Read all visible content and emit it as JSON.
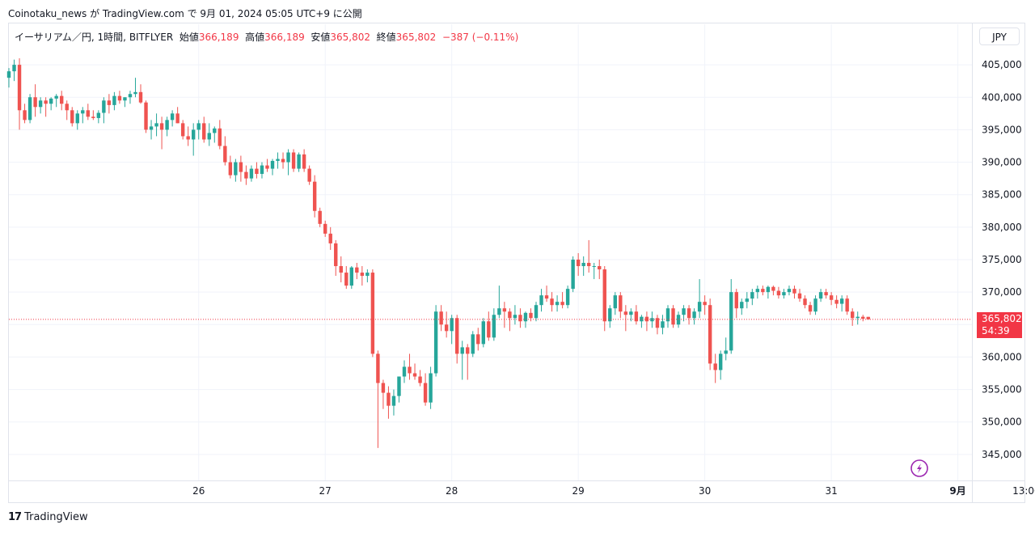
{
  "caption": "Coinotaku_news が TradingView.com で 9月 01, 2024 05:05 UTC+9 に公開",
  "legend": {
    "symbol": "イーサリアム／円, 1時間, BITFLYER",
    "open_label": "始値",
    "open": "366,189",
    "high_label": "高値",
    "high": "366,189",
    "low_label": "安値",
    "low": "365,802",
    "close_label": "終値",
    "close": "365,802",
    "change": "−387 (−0.11%)"
  },
  "unit_button": "JPY",
  "price_tag": {
    "price": "365,802",
    "countdown": "54:39"
  },
  "footer": {
    "brand": "TradingView",
    "logo_glyph": "17"
  },
  "icons": {
    "flash": "lightning-icon"
  },
  "colors": {
    "up": "#26a69a",
    "down": "#ef5350",
    "grid": "#f0f3fa",
    "tag": "#f23645"
  },
  "chart_data": {
    "type": "candlestick",
    "y_axis": {
      "min": 341000,
      "max": 408500,
      "ticks": [
        "405,000",
        "400,000",
        "395,000",
        "390,000",
        "385,000",
        "380,000",
        "375,000",
        "370,000",
        "365,000",
        "360,000",
        "355,000",
        "350,000",
        "345,000"
      ],
      "tick_values": [
        405000,
        400000,
        395000,
        390000,
        385000,
        380000,
        375000,
        370000,
        365000,
        360000,
        355000,
        350000,
        345000
      ]
    },
    "x_axis": {
      "labels": [
        "26",
        "27",
        "28",
        "29",
        "30",
        "31",
        "9月",
        "13:00"
      ],
      "label_hours": [
        36,
        60,
        84,
        108,
        132,
        156,
        180,
        193
      ],
      "bold": [
        false,
        false,
        false,
        false,
        false,
        false,
        true,
        false
      ]
    },
    "last_price": 365802,
    "candles": [
      [
        403000,
        404500,
        401500,
        404000
      ],
      [
        404000,
        405800,
        402500,
        405000
      ],
      [
        405000,
        406000,
        395000,
        398000
      ],
      [
        398000,
        399000,
        396000,
        396500
      ],
      [
        396500,
        400500,
        396000,
        400000
      ],
      [
        400000,
        402000,
        397000,
        398500
      ],
      [
        398500,
        400000,
        397500,
        399500
      ],
      [
        399500,
        400000,
        397000,
        399000
      ],
      [
        399000,
        400000,
        398000,
        399800
      ],
      [
        399800,
        400500,
        398500,
        400200
      ],
      [
        400200,
        401000,
        398000,
        399000
      ],
      [
        399000,
        399500,
        396500,
        398000
      ],
      [
        398000,
        398500,
        395500,
        396000
      ],
      [
        396000,
        398000,
        395000,
        397500
      ],
      [
        397500,
        398500,
        396000,
        398000
      ],
      [
        398000,
        399000,
        396500,
        397000
      ],
      [
        397000,
        398000,
        396500,
        396800
      ],
      [
        396800,
        398000,
        396000,
        397600
      ],
      [
        397600,
        400000,
        396000,
        399500
      ],
      [
        399500,
        400500,
        397500,
        398800
      ],
      [
        398800,
        400800,
        398000,
        400200
      ],
      [
        400200,
        401000,
        399000,
        399500
      ],
      [
        399500,
        400000,
        398500,
        400000
      ],
      [
        400000,
        401000,
        399000,
        400500
      ],
      [
        400500,
        403000,
        400000,
        400800
      ],
      [
        400800,
        402000,
        399000,
        399200
      ],
      [
        399200,
        399500,
        394500,
        395000
      ],
      [
        395000,
        396500,
        393500,
        395500
      ],
      [
        395500,
        397500,
        394000,
        396000
      ],
      [
        396000,
        397000,
        392000,
        395000
      ],
      [
        395000,
        397000,
        394000,
        396500
      ],
      [
        396500,
        398000,
        395500,
        397500
      ],
      [
        397500,
        398500,
        396000,
        396000
      ],
      [
        396000,
        396500,
        393500,
        394000
      ],
      [
        394000,
        395500,
        392500,
        393500
      ],
      [
        393500,
        396000,
        391000,
        395000
      ],
      [
        395000,
        396500,
        393500,
        396000
      ],
      [
        396000,
        397000,
        393000,
        393500
      ],
      [
        393500,
        396000,
        392500,
        394500
      ],
      [
        394500,
        395500,
        393000,
        395200
      ],
      [
        395200,
        396500,
        392000,
        392500
      ],
      [
        392500,
        394000,
        389500,
        390000
      ],
      [
        390000,
        391000,
        387500,
        388000
      ],
      [
        388000,
        390500,
        387000,
        390000
      ],
      [
        390000,
        391000,
        387000,
        388500
      ],
      [
        388500,
        389500,
        386500,
        387500
      ],
      [
        387500,
        389500,
        387000,
        389000
      ],
      [
        389000,
        390000,
        387500,
        388200
      ],
      [
        388200,
        390000,
        387500,
        389500
      ],
      [
        389500,
        390500,
        388500,
        389000
      ],
      [
        389000,
        390500,
        388000,
        390200
      ],
      [
        390200,
        391500,
        389000,
        390500
      ],
      [
        390500,
        391500,
        389000,
        390000
      ],
      [
        390000,
        392000,
        388000,
        391500
      ],
      [
        391500,
        392000,
        388500,
        389000
      ],
      [
        389000,
        391500,
        388500,
        391200
      ],
      [
        391200,
        392000,
        388500,
        389000
      ],
      [
        389000,
        389500,
        386500,
        387000
      ],
      [
        387000,
        388000,
        381500,
        382500
      ],
      [
        382500,
        383000,
        380000,
        380500
      ],
      [
        380500,
        381000,
        378500,
        379000
      ],
      [
        379000,
        380000,
        376500,
        377500
      ],
      [
        377500,
        378000,
        372500,
        374000
      ],
      [
        374000,
        375500,
        371500,
        373000
      ],
      [
        373000,
        374000,
        370500,
        371000
      ],
      [
        371000,
        374000,
        370500,
        373800
      ],
      [
        373800,
        374500,
        372000,
        373000
      ],
      [
        373000,
        374000,
        371000,
        372500
      ],
      [
        372500,
        373500,
        371500,
        373000
      ],
      [
        373000,
        373500,
        360000,
        360500
      ],
      [
        360500,
        361000,
        346000,
        356000
      ],
      [
        356000,
        356500,
        352000,
        354500
      ],
      [
        354500,
        355500,
        350500,
        352500
      ],
      [
        352500,
        355000,
        351000,
        354000
      ],
      [
        354000,
        357000,
        353000,
        357000
      ],
      [
        357000,
        359500,
        356000,
        358500
      ],
      [
        358500,
        360500,
        356500,
        357500
      ],
      [
        357500,
        359000,
        356500,
        357000
      ],
      [
        357000,
        358000,
        355500,
        356000
      ],
      [
        356000,
        357500,
        352500,
        353000
      ],
      [
        353000,
        358500,
        352000,
        357500
      ],
      [
        357500,
        368000,
        357000,
        367000
      ],
      [
        367000,
        368000,
        364000,
        365000
      ],
      [
        365000,
        367000,
        363000,
        364000
      ],
      [
        364000,
        366500,
        362000,
        366000
      ],
      [
        366000,
        366500,
        359000,
        360500
      ],
      [
        360500,
        362500,
        356500,
        361500
      ],
      [
        361500,
        362000,
        356500,
        360500
      ],
      [
        360500,
        364000,
        360000,
        363500
      ],
      [
        363500,
        364500,
        361000,
        362000
      ],
      [
        362000,
        366000,
        361500,
        365500
      ],
      [
        365500,
        367000,
        362500,
        363000
      ],
      [
        363000,
        367500,
        362500,
        366500
      ],
      [
        366500,
        371000,
        366000,
        367500
      ],
      [
        367500,
        368500,
        364500,
        367000
      ],
      [
        367000,
        367500,
        364000,
        366000
      ],
      [
        366000,
        368000,
        365000,
        366500
      ],
      [
        366500,
        367500,
        364500,
        365500
      ],
      [
        365500,
        367000,
        364500,
        366800
      ],
      [
        366800,
        367500,
        365500,
        366000
      ],
      [
        366000,
        368500,
        365500,
        368000
      ],
      [
        368000,
        370500,
        367000,
        369500
      ],
      [
        369500,
        371000,
        368500,
        369000
      ],
      [
        369000,
        370000,
        367000,
        368000
      ],
      [
        368000,
        369500,
        367000,
        368500
      ],
      [
        368500,
        370000,
        367500,
        368000
      ],
      [
        368000,
        371000,
        367500,
        370500
      ],
      [
        370500,
        375500,
        370000,
        375000
      ],
      [
        375000,
        376000,
        372500,
        374000
      ],
      [
        374000,
        375500,
        372500,
        374500
      ],
      [
        374500,
        378000,
        373000,
        374000
      ],
      [
        374000,
        374500,
        372000,
        374000
      ],
      [
        374000,
        375000,
        372000,
        373500
      ],
      [
        373500,
        374000,
        364000,
        365500
      ],
      [
        365500,
        368000,
        364500,
        367500
      ],
      [
        367500,
        370000,
        366500,
        369500
      ],
      [
        369500,
        370000,
        366000,
        367000
      ],
      [
        367000,
        368000,
        364000,
        366500
      ],
      [
        366500,
        367500,
        365500,
        367000
      ],
      [
        367000,
        368000,
        365000,
        365500
      ],
      [
        365500,
        366500,
        364500,
        366200
      ],
      [
        366200,
        367000,
        364000,
        365500
      ],
      [
        365500,
        367000,
        364500,
        366000
      ],
      [
        366000,
        366500,
        363500,
        364500
      ],
      [
        364500,
        366500,
        363500,
        365500
      ],
      [
        365500,
        368000,
        364500,
        367500
      ],
      [
        367500,
        368000,
        364500,
        365000
      ],
      [
        365000,
        367000,
        364500,
        366500
      ],
      [
        366500,
        368000,
        365500,
        367500
      ],
      [
        367500,
        368000,
        365000,
        366000
      ],
      [
        366000,
        367500,
        365000,
        367000
      ],
      [
        367000,
        372000,
        366000,
        368500
      ],
      [
        368500,
        369500,
        366500,
        368000
      ],
      [
        368000,
        369000,
        358000,
        359000
      ],
      [
        359000,
        360500,
        356000,
        358000
      ],
      [
        358000,
        361000,
        356500,
        360500
      ],
      [
        360500,
        363000,
        359500,
        361000
      ],
      [
        361000,
        372000,
        360500,
        370000
      ],
      [
        370000,
        370500,
        366000,
        367500
      ],
      [
        367500,
        369000,
        366500,
        368500
      ],
      [
        368500,
        370000,
        367500,
        369000
      ],
      [
        369000,
        370500,
        368000,
        370000
      ],
      [
        370000,
        371000,
        369000,
        370500
      ],
      [
        370500,
        371000,
        369500,
        370000
      ],
      [
        370000,
        371000,
        369000,
        370800
      ],
      [
        370800,
        371000,
        369500,
        370200
      ],
      [
        370200,
        370800,
        369000,
        369500
      ],
      [
        369500,
        370500,
        369000,
        370000
      ],
      [
        370000,
        371000,
        369500,
        370500
      ],
      [
        370500,
        371000,
        369000,
        369800
      ],
      [
        369800,
        370500,
        368500,
        369000
      ],
      [
        369000,
        369500,
        367500,
        368000
      ],
      [
        368000,
        368500,
        366500,
        367000
      ],
      [
        367000,
        369500,
        366500,
        369000
      ],
      [
        369000,
        370500,
        368500,
        370000
      ],
      [
        370000,
        370500,
        369000,
        369500
      ],
      [
        369500,
        370000,
        368000,
        368800
      ],
      [
        368800,
        369500,
        367500,
        368200
      ],
      [
        368200,
        369500,
        367000,
        369000
      ],
      [
        369000,
        369500,
        366500,
        367000
      ],
      [
        367000,
        367500,
        364800,
        366000
      ],
      [
        366000,
        367000,
        365000,
        366200
      ],
      [
        366200,
        366500,
        365500,
        365900
      ],
      [
        366189,
        366189,
        365802,
        365802
      ]
    ]
  }
}
